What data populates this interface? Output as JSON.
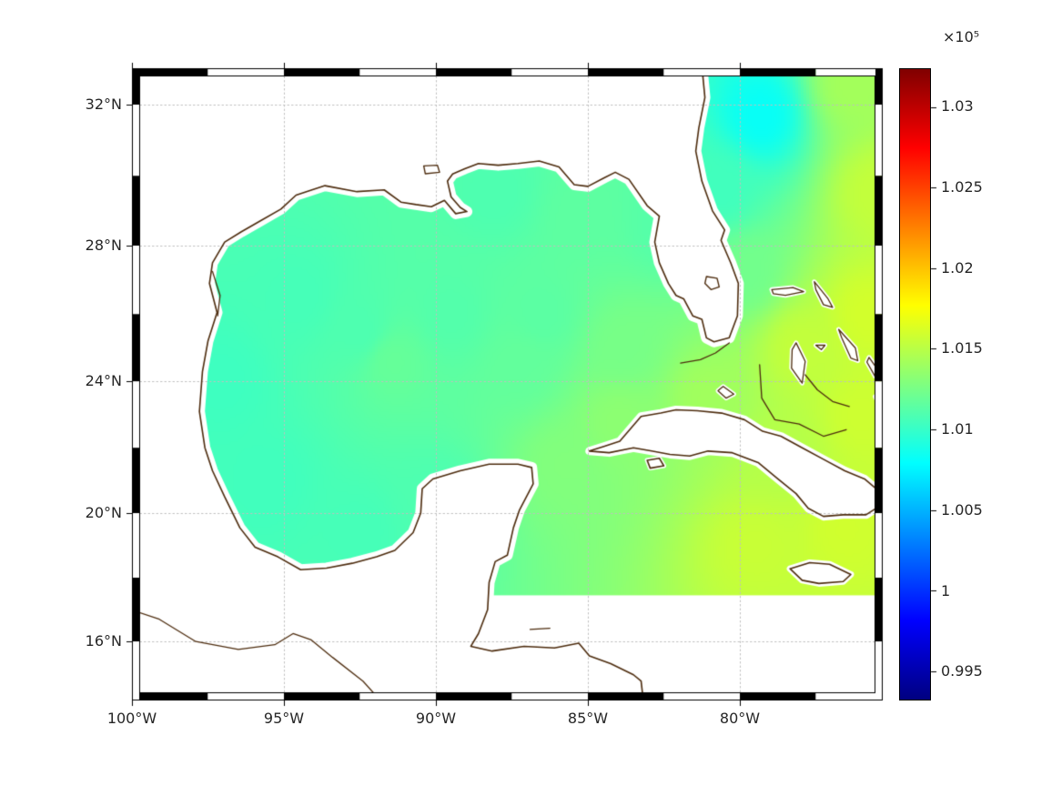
{
  "figure": {
    "background": "#ffffff",
    "coastline_color": "#4d2c0e",
    "grid_color": "#bfbfbf",
    "frame_colors": [
      "#000000",
      "#ffffff"
    ]
  },
  "axes": {
    "lon_range": [
      -100,
      -75.3
    ],
    "lat_range": [
      14.1,
      33.0
    ],
    "x_ticks": [
      {
        "label": "100°W",
        "lon": -100
      },
      {
        "label": "95°W",
        "lon": -95
      },
      {
        "label": "90°W",
        "lon": -90
      },
      {
        "label": "85°W",
        "lon": -85
      },
      {
        "label": "80°W",
        "lon": -80
      }
    ],
    "y_ticks": [
      {
        "label": "32°N",
        "lat": 32
      },
      {
        "label": "28°N",
        "lat": 28
      },
      {
        "label": "24°N",
        "lat": 24
      },
      {
        "label": "20°N",
        "lat": 20
      },
      {
        "label": "16°N",
        "lat": 16
      }
    ]
  },
  "colorbar": {
    "exponent_label": "×10⁵",
    "colormap": "jet",
    "caxis": [
      99320,
      103240
    ],
    "ticks": [
      {
        "label": "1.03",
        "value": 103000
      },
      {
        "label": "1.025",
        "value": 102500
      },
      {
        "label": "1.02",
        "value": 102000
      },
      {
        "label": "1.015",
        "value": 101500
      },
      {
        "label": "1.01",
        "value": 101000
      },
      {
        "label": "1.005",
        "value": 100500
      },
      {
        "label": "1",
        "value": 100000
      },
      {
        "label": "0.995",
        "value": 99500
      }
    ]
  },
  "chart_data": {
    "type": "heatmap",
    "title": "",
    "xlabel": "",
    "ylabel": "",
    "projection": "mercator",
    "lon_range": [
      -100,
      -75.3
    ],
    "lat_range": [
      14.1,
      33.0
    ],
    "value_scale_exponent": "×10⁵",
    "value_range": [
      99320,
      103240
    ],
    "field_points_lon_lat_pa": [
      [
        -97.0,
        24.0,
        101030
      ],
      [
        -94.5,
        26.5,
        101060
      ],
      [
        -95.5,
        21.0,
        101040
      ],
      [
        -92.5,
        19.5,
        101060
      ],
      [
        -90.0,
        20.5,
        101090
      ],
      [
        -92.5,
        25.5,
        101090
      ],
      [
        -89.5,
        26.0,
        101110
      ],
      [
        -91.4,
        24.6,
        101180
      ],
      [
        -87.2,
        24.5,
        101170
      ],
      [
        -85.2,
        28.8,
        101150
      ],
      [
        -86.5,
        26.0,
        101140
      ],
      [
        -88.0,
        29.5,
        101090
      ],
      [
        -83.8,
        25.0,
        101250
      ],
      [
        -82.5,
        28.5,
        101120
      ],
      [
        -85.8,
        21.5,
        101290
      ],
      [
        -84.0,
        22.8,
        101330
      ],
      [
        -81.0,
        23.5,
        101410
      ],
      [
        -78.5,
        21.8,
        101490
      ],
      [
        -79.5,
        19.0,
        101560
      ],
      [
        -76.5,
        19.5,
        101590
      ],
      [
        -76.0,
        23.0,
        101580
      ],
      [
        -75.8,
        26.0,
        101600
      ],
      [
        -78.0,
        25.0,
        101540
      ],
      [
        -79.8,
        27.2,
        101230
      ],
      [
        -80.6,
        29.6,
        101040
      ],
      [
        -79.3,
        31.7,
        100820
      ],
      [
        -76.3,
        32.6,
        101420
      ],
      [
        -75.5,
        29.5,
        101540
      ]
    ],
    "south_cutoff": {
      "lat": 17.45,
      "west_lon": -89.5
    },
    "coastlines": {
      "mainland": [
        [
          -100.5,
          33.5
        ],
        [
          -81.3,
          33.5
        ],
        [
          -81.15,
          32.2
        ],
        [
          -81.35,
          31.35
        ],
        [
          -81.45,
          30.7
        ],
        [
          -81.25,
          29.85
        ],
        [
          -80.9,
          29.0
        ],
        [
          -80.5,
          28.45
        ],
        [
          -80.62,
          28.15
        ],
        [
          -80.3,
          27.5
        ],
        [
          -80.05,
          26.9
        ],
        [
          -80.08,
          25.95
        ],
        [
          -80.35,
          25.3
        ],
        [
          -80.85,
          25.18
        ],
        [
          -81.1,
          25.3
        ],
        [
          -81.25,
          25.85
        ],
        [
          -81.55,
          25.95
        ],
        [
          -81.85,
          26.45
        ],
        [
          -82.1,
          26.55
        ],
        [
          -82.35,
          26.9
        ],
        [
          -82.65,
          27.5
        ],
        [
          -82.8,
          28.1
        ],
        [
          -82.65,
          28.85
        ],
        [
          -83.05,
          29.15
        ],
        [
          -83.65,
          29.9
        ],
        [
          -84.1,
          30.1
        ],
        [
          -84.45,
          29.95
        ],
        [
          -85.0,
          29.7
        ],
        [
          -85.45,
          29.75
        ],
        [
          -85.95,
          30.25
        ],
        [
          -86.6,
          30.42
        ],
        [
          -87.3,
          30.35
        ],
        [
          -87.95,
          30.3
        ],
        [
          -88.6,
          30.35
        ],
        [
          -89.05,
          30.2
        ],
        [
          -89.45,
          30.05
        ],
        [
          -89.62,
          29.85
        ],
        [
          -89.5,
          29.4
        ],
        [
          -89.2,
          29.1
        ],
        [
          -88.98,
          28.98
        ],
        [
          -89.35,
          28.92
        ],
        [
          -89.72,
          29.3
        ],
        [
          -90.15,
          29.12
        ],
        [
          -90.65,
          29.18
        ],
        [
          -91.15,
          29.25
        ],
        [
          -91.7,
          29.6
        ],
        [
          -92.6,
          29.55
        ],
        [
          -93.65,
          29.72
        ],
        [
          -94.6,
          29.45
        ],
        [
          -95.1,
          29.05
        ],
        [
          -95.8,
          28.7
        ],
        [
          -96.4,
          28.4
        ],
        [
          -96.95,
          28.1
        ],
        [
          -97.35,
          27.5
        ],
        [
          -97.45,
          26.9
        ],
        [
          -97.2,
          26.05
        ],
        [
          -97.5,
          25.2
        ],
        [
          -97.68,
          24.3
        ],
        [
          -97.78,
          23.1
        ],
        [
          -97.6,
          22.0
        ],
        [
          -97.35,
          21.3
        ],
        [
          -96.95,
          20.5
        ],
        [
          -96.45,
          19.55
        ],
        [
          -95.95,
          18.95
        ],
        [
          -95.2,
          18.65
        ],
        [
          -94.45,
          18.25
        ],
        [
          -93.6,
          18.3
        ],
        [
          -92.75,
          18.45
        ],
        [
          -91.95,
          18.65
        ],
        [
          -91.35,
          18.85
        ],
        [
          -90.75,
          19.4
        ],
        [
          -90.5,
          20.0
        ],
        [
          -90.45,
          20.75
        ],
        [
          -90.1,
          21.05
        ],
        [
          -89.2,
          21.3
        ],
        [
          -88.25,
          21.5
        ],
        [
          -87.3,
          21.5
        ],
        [
          -86.85,
          21.4
        ],
        [
          -86.8,
          20.9
        ],
        [
          -87.25,
          20.1
        ],
        [
          -87.45,
          19.55
        ],
        [
          -87.65,
          18.7
        ],
        [
          -88.05,
          18.5
        ],
        [
          -88.25,
          17.85
        ],
        [
          -88.3,
          17.0
        ],
        [
          -88.6,
          16.25
        ],
        [
          -88.85,
          15.85
        ],
        [
          -88.15,
          15.7
        ],
        [
          -87.1,
          15.85
        ],
        [
          -86.1,
          15.8
        ],
        [
          -85.3,
          15.95
        ],
        [
          -84.95,
          15.55
        ],
        [
          -84.25,
          15.3
        ],
        [
          -83.5,
          14.95
        ],
        [
          -83.25,
          14.75
        ],
        [
          -83.1,
          13.5
        ],
        [
          -100.5,
          13.5
        ]
      ],
      "cuba": [
        [
          -84.95,
          21.9
        ],
        [
          -84.45,
          22.05
        ],
        [
          -83.95,
          22.2
        ],
        [
          -83.25,
          22.95
        ],
        [
          -82.6,
          23.05
        ],
        [
          -82.1,
          23.15
        ],
        [
          -81.4,
          23.12
        ],
        [
          -80.6,
          23.05
        ],
        [
          -79.85,
          22.85
        ],
        [
          -79.25,
          22.5
        ],
        [
          -78.65,
          22.35
        ],
        [
          -77.95,
          22.0
        ],
        [
          -77.25,
          21.65
        ],
        [
          -76.55,
          21.3
        ],
        [
          -75.9,
          21.05
        ],
        [
          -75.45,
          20.7
        ],
        [
          -75.35,
          20.25
        ],
        [
          -75.85,
          19.95
        ],
        [
          -76.6,
          19.95
        ],
        [
          -77.25,
          19.9
        ],
        [
          -77.75,
          20.15
        ],
        [
          -78.15,
          20.6
        ],
        [
          -78.75,
          21.05
        ],
        [
          -79.4,
          21.55
        ],
        [
          -80.25,
          21.85
        ],
        [
          -81.05,
          21.9
        ],
        [
          -81.65,
          21.75
        ],
        [
          -82.3,
          21.8
        ],
        [
          -82.9,
          21.9
        ],
        [
          -83.5,
          22.0
        ],
        [
          -84.3,
          21.85
        ]
      ],
      "isle_of_youth": [
        [
          -83.05,
          21.62
        ],
        [
          -82.65,
          21.68
        ],
        [
          -82.5,
          21.45
        ],
        [
          -82.95,
          21.38
        ]
      ],
      "jamaica": [
        [
          -78.35,
          18.28
        ],
        [
          -77.7,
          18.47
        ],
        [
          -77.05,
          18.42
        ],
        [
          -76.35,
          18.1
        ],
        [
          -76.6,
          17.88
        ],
        [
          -77.4,
          17.82
        ],
        [
          -77.95,
          17.92
        ]
      ],
      "islands": [
        [
          [
            -78.95,
            26.72
          ],
          [
            -78.25,
            26.78
          ],
          [
            -77.9,
            26.66
          ],
          [
            -78.5,
            26.55
          ],
          [
            -78.9,
            26.6
          ]
        ],
        [
          [
            -77.55,
            26.95
          ],
          [
            -77.1,
            26.45
          ],
          [
            -76.95,
            26.2
          ],
          [
            -77.25,
            26.28
          ],
          [
            -77.5,
            26.72
          ]
        ],
        [
          [
            -78.15,
            25.15
          ],
          [
            -77.85,
            24.6
          ],
          [
            -77.95,
            23.95
          ],
          [
            -78.3,
            24.4
          ],
          [
            -78.28,
            24.95
          ]
        ],
        [
          [
            -77.5,
            25.08
          ],
          [
            -77.2,
            25.08
          ],
          [
            -77.32,
            24.95
          ]
        ],
        [
          [
            -76.75,
            25.55
          ],
          [
            -76.2,
            25.0
          ],
          [
            -76.12,
            24.62
          ],
          [
            -76.35,
            24.7
          ],
          [
            -76.65,
            25.3
          ]
        ],
        [
          [
            -75.75,
            24.72
          ],
          [
            -75.42,
            24.3
          ],
          [
            -75.55,
            24.15
          ],
          [
            -75.82,
            24.58
          ]
        ],
        [
          [
            -75.35,
            23.7
          ],
          [
            -75.0,
            23.05
          ],
          [
            -75.22,
            22.95
          ],
          [
            -75.55,
            23.55
          ]
        ],
        [
          [
            -80.55,
            23.85
          ],
          [
            -80.2,
            23.62
          ],
          [
            -80.45,
            23.5
          ],
          [
            -80.72,
            23.72
          ]
        ]
      ],
      "open_lines": [
        [
          [
            -100.5,
            17.15
          ],
          [
            -99.1,
            16.7
          ],
          [
            -97.9,
            16.0
          ],
          [
            -96.5,
            15.75
          ],
          [
            -95.3,
            15.9
          ],
          [
            -94.7,
            16.25
          ],
          [
            -94.1,
            16.05
          ],
          [
            -93.4,
            15.5
          ],
          [
            -92.4,
            14.75
          ],
          [
            -91.7,
            14.0
          ],
          [
            -91.35,
            13.55
          ]
        ],
        [
          [
            -80.35,
            25.15
          ],
          [
            -80.8,
            24.85
          ],
          [
            -81.3,
            24.65
          ],
          [
            -81.95,
            24.55
          ]
        ],
        [
          [
            -79.35,
            24.5
          ],
          [
            -79.28,
            23.5
          ],
          [
            -78.85,
            22.85
          ],
          [
            -78.05,
            22.72
          ],
          [
            -77.25,
            22.35
          ],
          [
            -76.5,
            22.55
          ]
        ],
        [
          [
            -77.85,
            24.2
          ],
          [
            -77.45,
            23.75
          ],
          [
            -76.95,
            23.4
          ],
          [
            -76.4,
            23.25
          ]
        ],
        [
          [
            -86.9,
            16.38
          ],
          [
            -86.25,
            16.42
          ]
        ],
        [
          [
            -97.35,
            27.25
          ],
          [
            -97.1,
            26.55
          ],
          [
            -97.18,
            25.95
          ]
        ]
      ],
      "lakes": [
        [
          [
            -81.1,
            27.1
          ],
          [
            -80.75,
            27.05
          ],
          [
            -80.68,
            26.8
          ],
          [
            -80.95,
            26.72
          ],
          [
            -81.15,
            26.9
          ]
        ],
        [
          [
            -90.4,
            30.28
          ],
          [
            -89.95,
            30.3
          ],
          [
            -89.88,
            30.1
          ],
          [
            -90.35,
            30.06
          ]
        ]
      ]
    }
  }
}
